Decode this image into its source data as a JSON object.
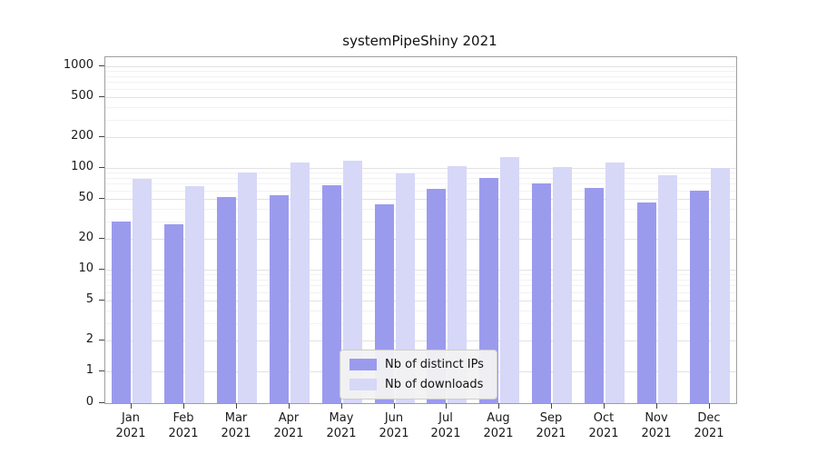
{
  "chart_data": {
    "type": "bar",
    "title": "systemPipeShiny 2021",
    "xlabel": "",
    "ylabel": "",
    "yscale": "log",
    "grid": true,
    "legend_position": "lower center",
    "yticks": [
      1000,
      500,
      200,
      100,
      50,
      20,
      10,
      5,
      2,
      1,
      0
    ],
    "ylim": [
      0,
      1200
    ],
    "categories": [
      "Jan 2021",
      "Feb 2021",
      "Mar 2021",
      "Apr 2021",
      "May 2021",
      "Jun 2021",
      "Jul 2021",
      "Aug 2021",
      "Sep 2021",
      "Oct 2021",
      "Nov 2021",
      "Dec 2021"
    ],
    "series": [
      {
        "name": "Nb of distinct IPs",
        "color": "#9b9bee",
        "values": [
          30,
          28,
          52,
          54,
          67,
          44,
          62,
          79,
          70,
          64,
          46,
          60
        ]
      },
      {
        "name": "Nb of downloads",
        "color": "#d7d7f8",
        "values": [
          78,
          66,
          90,
          112,
          118,
          88,
          104,
          128,
          103,
          112,
          85,
          101
        ]
      }
    ]
  },
  "x_axis": {
    "months": [
      "Jan",
      "Feb",
      "Mar",
      "Apr",
      "May",
      "Jun",
      "Jul",
      "Aug",
      "Sep",
      "Oct",
      "Nov",
      "Dec"
    ],
    "year": "2021"
  }
}
